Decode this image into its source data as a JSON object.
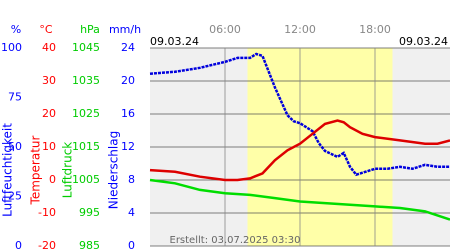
{
  "chart_data": {
    "type": "line",
    "date_left": "09.03.24",
    "date_right": "09.03.24",
    "footer": "Erstellt: 03.07.2025 03:30",
    "xlim": [
      0,
      24
    ],
    "xticks": [
      {
        "value": 6,
        "label": "06:00"
      },
      {
        "value": 12,
        "label": "12:00"
      },
      {
        "value": 18,
        "label": "18:00"
      }
    ],
    "shaded_x": [
      7.8,
      19.4
    ],
    "shade_color": "#ffffa8",
    "grid": true,
    "grid_axis": 1,
    "y_axes": [
      {
        "unit": "%",
        "label": "Luftfeuchtigkeit",
        "color": "#0000ff",
        "ylim": [
          0,
          100
        ],
        "yticks": [
          0,
          25,
          50,
          75,
          100
        ]
      },
      {
        "unit": "°C",
        "label": "Temperatur",
        "color": "#ff0000",
        "ylim": [
          -20,
          40
        ],
        "yticks": [
          -20,
          -10,
          0,
          10,
          20,
          30,
          40
        ]
      },
      {
        "unit": "hPa",
        "label": "Luftdruck",
        "color": "#00cc00",
        "ylim": [
          985,
          1045
        ],
        "yticks": [
          985,
          995,
          1005,
          1015,
          1025,
          1035,
          1045
        ]
      },
      {
        "unit": "mm/h",
        "label": "Niederschlag",
        "color": "#0000ff",
        "ylim": [
          0,
          24
        ],
        "yticks": [
          0,
          4,
          8,
          12,
          16,
          20,
          24
        ]
      }
    ],
    "series": [
      {
        "axis": 0,
        "color": "#0000dd",
        "x": [
          0,
          2,
          4,
          6,
          7,
          8,
          8.5,
          9,
          9.5,
          10,
          10.5,
          11,
          11.5,
          12,
          13,
          13.5,
          14,
          15,
          15.5,
          16,
          16.5,
          17,
          18,
          19,
          20,
          21,
          22,
          23,
          24
        ],
        "values": [
          87,
          88,
          90,
          93,
          95,
          95,
          97,
          96,
          88,
          80,
          73,
          66,
          63,
          62,
          58,
          52,
          48,
          45,
          47,
          40,
          36,
          37,
          39,
          39,
          40,
          39,
          41,
          40,
          40
        ]
      },
      {
        "axis": 1,
        "color": "#dd0000",
        "x": [
          0,
          2,
          4,
          6,
          7,
          8,
          9,
          10,
          11,
          12,
          13,
          14,
          15,
          15.5,
          16,
          17,
          18,
          20,
          22,
          23,
          24
        ],
        "values": [
          3,
          2.5,
          1,
          0,
          0,
          0.5,
          2,
          6,
          9,
          11,
          14,
          17,
          18,
          17.5,
          16,
          14,
          13,
          12,
          11,
          11,
          12
        ]
      },
      {
        "axis": 2,
        "color": "#00dd00",
        "x": [
          0,
          2,
          4,
          6,
          8,
          10,
          12,
          14,
          16,
          18,
          20,
          22,
          24
        ],
        "values": [
          1005,
          1004,
          1002,
          1001,
          1000.5,
          999.5,
          998.5,
          998,
          997.5,
          997,
          996.5,
          995.5,
          993
        ]
      }
    ]
  }
}
